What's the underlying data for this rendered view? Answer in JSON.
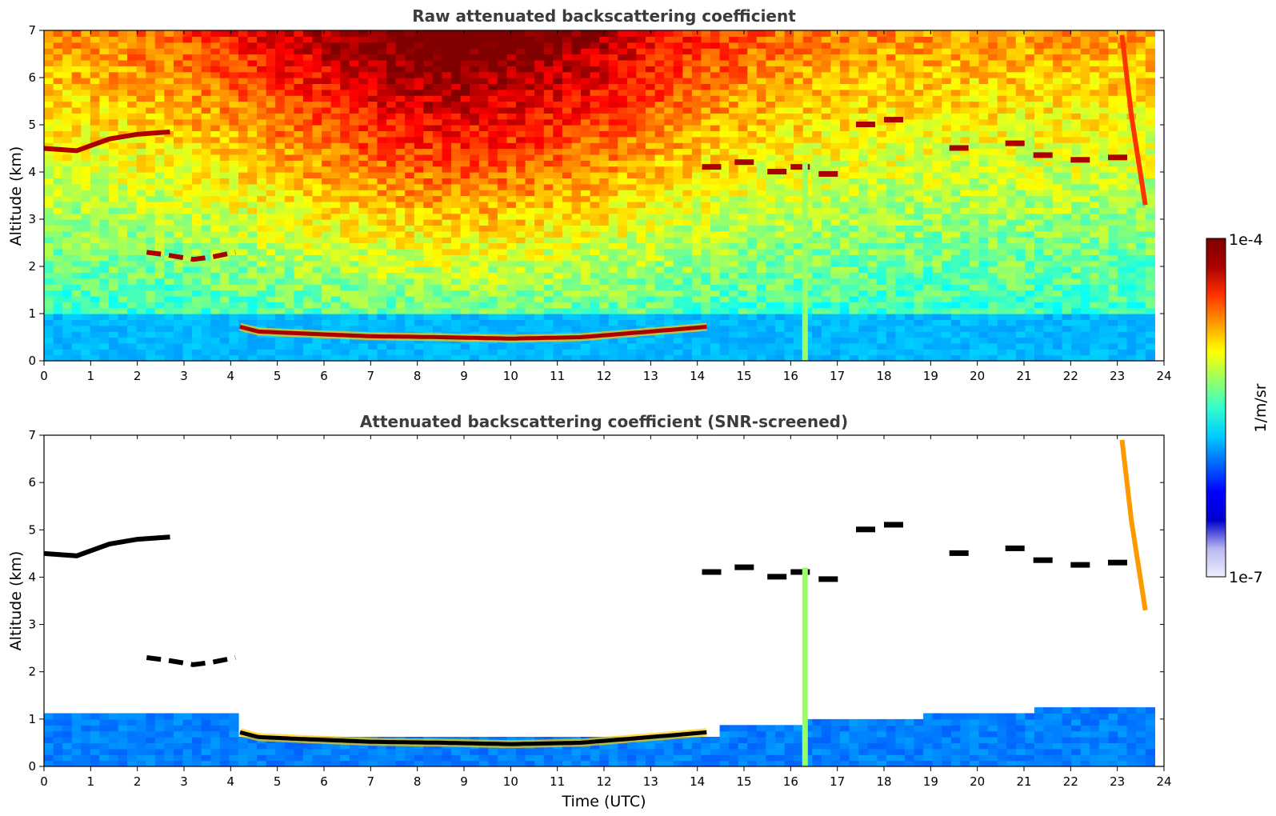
{
  "chart_data": [
    {
      "type": "heatmap",
      "title": "Raw attenuated backscattering coefficient",
      "ylabel": "Altitude (km)",
      "xlabel": "",
      "xlim": [
        0,
        24
      ],
      "ylim": [
        0,
        7
      ],
      "x_ticks": [
        "0",
        "1",
        "2",
        "3",
        "4",
        "5",
        "6",
        "7",
        "8",
        "9",
        "10",
        "11",
        "12",
        "13",
        "14",
        "15",
        "16",
        "17",
        "18",
        "19",
        "20",
        "21",
        "22",
        "23",
        "24"
      ],
      "y_ticks": [
        "0",
        "1",
        "2",
        "3",
        "4",
        "5",
        "6",
        "7"
      ],
      "data_end_time": 23.8,
      "screened": false,
      "features": [
        {
          "kind": "boundary_layer_top",
          "t": [
            4.2,
            4.6,
            5.5,
            7,
            8.5,
            10,
            11.5,
            13,
            14.2
          ],
          "alt_km": [
            0.72,
            0.62,
            0.58,
            0.52,
            0.5,
            0.47,
            0.5,
            0.62,
            0.72
          ]
        },
        {
          "kind": "cloud_layer",
          "t": [
            0,
            0.7,
            1.4,
            2.0,
            2.7
          ],
          "alt_km": [
            4.5,
            4.45,
            4.7,
            4.8,
            4.85
          ]
        },
        {
          "kind": "cloud_layer",
          "t": [
            2.2,
            2.6,
            3.2,
            3.6,
            4.1
          ],
          "alt_km": [
            2.3,
            2.25,
            2.15,
            2.2,
            2.3
          ]
        },
        {
          "kind": "cloud_patches",
          "t": [
            14.1,
            14.8,
            15.5,
            16.0,
            16.6,
            17.4,
            18.0,
            19.4,
            20.6,
            21.2,
            22.0,
            22.8
          ],
          "alt_km": [
            4.1,
            4.2,
            4.0,
            4.1,
            3.95,
            5.0,
            5.1,
            4.5,
            4.6,
            4.35,
            4.25,
            4.3
          ]
        },
        {
          "kind": "precipitation_column",
          "t": 16.3,
          "alt_km": [
            0,
            4.2
          ]
        },
        {
          "kind": "virga",
          "t": [
            23.1,
            23.3,
            23.6
          ],
          "alt_km": [
            6.9,
            5.2,
            3.3
          ]
        }
      ]
    },
    {
      "type": "heatmap",
      "title": "Attenuated backscattering coefficient (SNR-screened)",
      "ylabel": "Altitude (km)",
      "xlabel": "Time (UTC)",
      "xlim": [
        0,
        24
      ],
      "ylim": [
        0,
        7
      ],
      "x_ticks": [
        "0",
        "1",
        "2",
        "3",
        "4",
        "5",
        "6",
        "7",
        "8",
        "9",
        "10",
        "11",
        "12",
        "13",
        "14",
        "15",
        "16",
        "17",
        "18",
        "19",
        "20",
        "21",
        "22",
        "23",
        "24"
      ],
      "y_ticks": [
        "0",
        "1",
        "2",
        "3",
        "4",
        "5",
        "6",
        "7"
      ],
      "data_end_time": 23.8,
      "screened": true
    }
  ],
  "colorbar": {
    "max_label": "1e-4",
    "min_label": "1e-7",
    "unit_label": "1/m/sr",
    "scale": "log",
    "colormap": "jet",
    "colors": [
      "#eeeeff",
      "#b8b8f0",
      "#0000cd",
      "#0000ff",
      "#0066ff",
      "#00ccff",
      "#33ffcc",
      "#99ff66",
      "#ffff00",
      "#ff9900",
      "#ff3300",
      "#aa0000",
      "#800000"
    ]
  },
  "style": {
    "background": "#ffffff",
    "cloud_saturated": "#000000"
  }
}
